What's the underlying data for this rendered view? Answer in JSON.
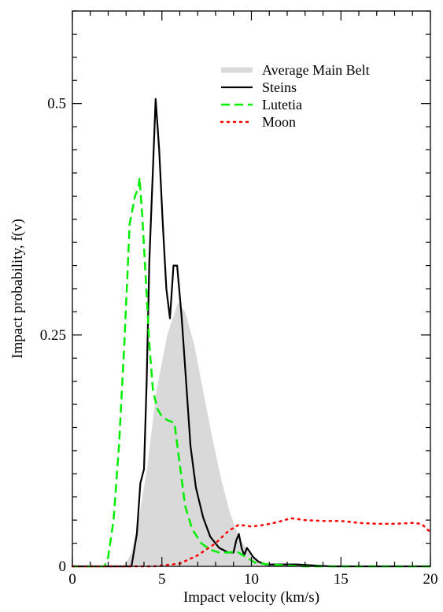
{
  "chart_data": {
    "type": "line",
    "title": "",
    "xlabel": "Impact velocity (km/s)",
    "ylabel": "Impact probability, f(v)",
    "xlim": [
      0,
      20
    ],
    "ylim": [
      0,
      0.6
    ],
    "xticks": [
      0,
      5,
      10,
      15,
      20
    ],
    "xtick_labels": [
      "0",
      "5",
      "10",
      "15",
      "20"
    ],
    "yticks": [
      0,
      0.25,
      0.5
    ],
    "ytick_labels": [
      "0",
      "0.25",
      "0.5"
    ],
    "grid": false,
    "legend_position": "top-right",
    "series": [
      {
        "name": "Average Main Belt",
        "style": "filled-area",
        "color": "#d9d9d9",
        "x": [
          0,
          2.9,
          3.3,
          3.7,
          4.2,
          4.7,
          5.3,
          5.9,
          6.3,
          6.8,
          7.3,
          7.8,
          8.3,
          8.8,
          9.3,
          9.8,
          10.3,
          11,
          12,
          14,
          20
        ],
        "y": [
          0,
          0,
          0.015,
          0.05,
          0.11,
          0.19,
          0.25,
          0.285,
          0.275,
          0.24,
          0.19,
          0.14,
          0.095,
          0.058,
          0.032,
          0.016,
          0.007,
          0.002,
          0.0005,
          0,
          0
        ]
      },
      {
        "name": "Steins",
        "style": "solid",
        "color": "#000000",
        "x": [
          0,
          3.3,
          3.6,
          3.8,
          4.0,
          4.15,
          4.3,
          4.5,
          4.65,
          4.85,
          5.05,
          5.25,
          5.45,
          5.65,
          5.85,
          6.1,
          6.35,
          6.6,
          6.9,
          7.3,
          7.7,
          8.2,
          8.7,
          9.0,
          9.15,
          9.3,
          9.45,
          9.6,
          9.75,
          9.9,
          10.1,
          10.4,
          10.8,
          11.5,
          12.5,
          13.5,
          14.5,
          20
        ],
        "y": [
          0,
          0,
          0.035,
          0.09,
          0.105,
          0.2,
          0.33,
          0.43,
          0.505,
          0.45,
          0.37,
          0.3,
          0.268,
          0.325,
          0.325,
          0.27,
          0.2,
          0.13,
          0.085,
          0.053,
          0.032,
          0.02,
          0.015,
          0.015,
          0.028,
          0.035,
          0.02,
          0.012,
          0.02,
          0.016,
          0.01,
          0.005,
          0.002,
          0.002,
          0.002,
          0.001,
          0,
          0
        ]
      },
      {
        "name": "Lutetia",
        "style": "dashed",
        "color": "#00ee00",
        "x": [
          0,
          1.8,
          2.0,
          2.3,
          2.6,
          2.9,
          3.2,
          3.5,
          3.7,
          3.75,
          3.9,
          4.1,
          4.3,
          4.5,
          4.75,
          5.0,
          5.3,
          5.7,
          6.0,
          6.3,
          6.7,
          7.2,
          7.7,
          8.2,
          8.7,
          9.2,
          9.7,
          10.2,
          11,
          12,
          13,
          14,
          20
        ],
        "y": [
          0,
          0,
          0.01,
          0.05,
          0.13,
          0.24,
          0.37,
          0.4,
          0.41,
          0.42,
          0.38,
          0.31,
          0.24,
          0.19,
          0.17,
          0.162,
          0.158,
          0.155,
          0.11,
          0.065,
          0.04,
          0.025,
          0.018,
          0.015,
          0.015,
          0.016,
          0.01,
          0.004,
          0.002,
          0.001,
          0,
          0,
          0
        ]
      },
      {
        "name": "Moon",
        "style": "dotted",
        "color": "#ff0000",
        "x": [
          0,
          4.5,
          6.0,
          7.0,
          8.0,
          8.7,
          9.3,
          10.0,
          10.8,
          11.5,
          12.2,
          13.0,
          14.0,
          15.0,
          16.0,
          17.0,
          18.0,
          19.0,
          19.5,
          20.0
        ],
        "y": [
          0,
          0,
          0.003,
          0.012,
          0.025,
          0.038,
          0.045,
          0.043,
          0.045,
          0.048,
          0.052,
          0.05,
          0.049,
          0.049,
          0.047,
          0.046,
          0.046,
          0.047,
          0.046,
          0.037
        ]
      }
    ]
  }
}
